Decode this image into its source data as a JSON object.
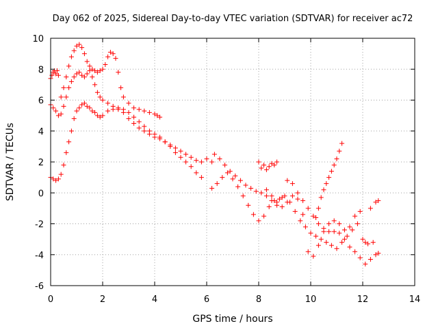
{
  "chart_data": {
    "type": "scatter",
    "title": "Day 062 of 2025, Sidereal Day-to-day VTEC variation (SDTVAR) for receiver ac72",
    "xlabel": "GPS time / hours",
    "ylabel": "SDTVAR / TECUs",
    "xlim": [
      0,
      14
    ],
    "ylim": [
      -6,
      10
    ],
    "xticks": [
      "0",
      "2",
      "4",
      "6",
      "8",
      "10",
      "12",
      "14"
    ],
    "yticks": [
      "-6",
      "-4",
      "-2",
      "0",
      "2",
      "4",
      "6",
      "8",
      "10"
    ],
    "grid": true,
    "marker": "+",
    "color": "#ff0000",
    "series": [
      {
        "name": "trace-1",
        "x": [
          0.0,
          0.05,
          0.1,
          0.15,
          0.2,
          0.25,
          0.3,
          0.4,
          0.5,
          0.6,
          0.7,
          0.8,
          0.9,
          1.0,
          1.1,
          1.2,
          1.3,
          1.4,
          1.5,
          1.6,
          1.7,
          1.8,
          1.9,
          2.0,
          2.1,
          2.2,
          2.3,
          2.4,
          2.5,
          2.6,
          2.7,
          2.8,
          3.0,
          3.2,
          3.4,
          3.6,
          3.8,
          4.0,
          4.1,
          4.2
        ],
        "y": [
          7.4,
          7.6,
          7.8,
          7.9,
          7.7,
          7.9,
          7.6,
          6.2,
          6.8,
          7.5,
          8.2,
          8.8,
          9.2,
          9.5,
          9.6,
          9.4,
          9.0,
          8.5,
          8.2,
          8.0,
          7.9,
          7.8,
          7.9,
          8.0,
          8.3,
          8.8,
          9.1,
          9.0,
          8.7,
          7.8,
          6.8,
          6.2,
          5.8,
          5.5,
          5.4,
          5.3,
          5.2,
          5.1,
          5.0,
          4.9
        ]
      },
      {
        "name": "trace-2",
        "x": [
          0.0,
          0.1,
          0.2,
          0.3,
          0.4,
          0.5,
          0.6,
          0.7,
          0.8,
          0.9,
          1.0,
          1.1,
          1.2,
          1.3,
          1.4,
          1.5,
          1.6,
          1.7,
          1.8,
          1.9,
          2.0,
          2.2,
          2.4,
          2.6,
          2.8,
          3.0,
          3.2,
          3.4,
          3.6,
          3.8,
          4.0,
          4.2,
          4.4,
          4.6,
          4.8,
          5.0,
          5.2,
          5.4,
          5.6,
          5.8,
          6.0,
          6.2
        ],
        "y": [
          5.7,
          5.5,
          5.3,
          5.0,
          5.1,
          5.6,
          6.2,
          6.8,
          7.2,
          7.5,
          7.7,
          7.8,
          7.6,
          7.5,
          7.7,
          7.9,
          7.5,
          7.0,
          6.5,
          6.2,
          6.0,
          5.8,
          5.6,
          5.4,
          5.2,
          4.8,
          4.5,
          4.2,
          4.0,
          3.8,
          3.6,
          3.5,
          3.3,
          3.1,
          2.9,
          2.7,
          2.5,
          2.3,
          2.1,
          2.0,
          2.2,
          2.0
        ]
      },
      {
        "name": "trace-3",
        "x": [
          0.0,
          0.1,
          0.2,
          0.3,
          0.4,
          0.5,
          0.6,
          0.7,
          0.8,
          0.9,
          1.0,
          1.1,
          1.2,
          1.3,
          1.4,
          1.5,
          1.6,
          1.7,
          1.8,
          1.9,
          2.0,
          2.2,
          2.4,
          2.6,
          2.8,
          3.0,
          3.2,
          3.4,
          3.6,
          3.8,
          4.0,
          4.2,
          4.4,
          4.6,
          4.8,
          5.0,
          5.2,
          5.4,
          5.6,
          5.8
        ],
        "y": [
          1.0,
          0.9,
          0.8,
          0.9,
          1.2,
          1.8,
          2.6,
          3.3,
          4.0,
          4.8,
          5.3,
          5.5,
          5.7,
          5.8,
          5.6,
          5.5,
          5.3,
          5.2,
          5.0,
          4.9,
          5.0,
          5.3,
          5.4,
          5.5,
          5.4,
          5.2,
          4.9,
          4.6,
          4.3,
          4.0,
          3.8,
          3.6,
          3.3,
          3.0,
          2.6,
          2.3,
          2.0,
          1.7,
          1.3,
          1.0
        ]
      },
      {
        "name": "trace-4",
        "x": [
          6.3,
          6.5,
          6.7,
          6.9,
          7.1,
          7.3,
          7.5,
          7.7,
          7.9,
          8.1,
          8.3,
          8.5,
          8.7,
          8.9,
          9.1,
          9.3,
          9.5,
          9.7,
          9.9,
          10.1,
          10.3,
          10.5,
          10.7,
          10.9,
          11.1,
          11.3,
          11.5,
          11.7,
          11.9,
          12.1,
          12.3,
          12.5,
          12.6
        ],
        "y": [
          2.5,
          2.2,
          1.8,
          1.4,
          1.1,
          0.8,
          0.5,
          0.3,
          0.1,
          0.0,
          -0.2,
          -0.5,
          -0.8,
          -0.3,
          0.8,
          0.6,
          0.0,
          -0.5,
          -1.0,
          -1.5,
          -2.0,
          -2.3,
          -2.5,
          -2.5,
          -2.6,
          -3.0,
          -3.5,
          -3.8,
          -4.2,
          -4.6,
          -4.3,
          -4.0,
          -3.9
        ]
      },
      {
        "name": "trace-5",
        "x": [
          6.2,
          6.4,
          6.6,
          6.8,
          7.0,
          7.2,
          7.4,
          7.6,
          7.8,
          8.0,
          8.2,
          8.4,
          8.6,
          8.8,
          9.0,
          9.2,
          9.4,
          9.6,
          9.8,
          10.0,
          10.2,
          10.4,
          10.6,
          10.8,
          11.0,
          11.2,
          11.4,
          11.6,
          11.8,
          12.0,
          12.2,
          12.4
        ],
        "y": [
          0.3,
          0.6,
          1.0,
          1.3,
          0.9,
          0.4,
          -0.2,
          -0.8,
          -1.4,
          -1.8,
          -1.5,
          -0.9,
          -0.5,
          -0.4,
          -0.2,
          -0.6,
          -1.2,
          -1.8,
          -2.2,
          -2.6,
          -2.8,
          -3.0,
          -3.2,
          -3.4,
          -3.6,
          -3.2,
          -2.8,
          -2.4,
          -2.0,
          -3.0,
          -3.3,
          -3.2
        ]
      },
      {
        "name": "trace-6",
        "x": [
          8.3,
          8.5,
          8.7,
          8.9,
          9.1,
          9.3,
          9.5,
          9.7,
          9.9,
          10.1,
          10.3,
          10.5,
          10.7,
          10.9,
          11.1,
          11.3,
          11.5,
          11.7,
          11.9,
          12.1,
          12.3,
          12.5,
          12.6
        ],
        "y": [
          0.2,
          -0.2,
          -0.6,
          -0.9,
          -0.6,
          -0.2,
          -0.4,
          -1.4,
          -3.8,
          -4.1,
          -3.4,
          -2.5,
          -2.0,
          -1.8,
          -2.0,
          -2.4,
          -2.2,
          -1.5,
          -1.2,
          -3.2,
          -1.0,
          -0.6,
          -0.5
        ]
      },
      {
        "name": "trace-7",
        "x": [
          10.2,
          10.3,
          10.4,
          10.5,
          10.6,
          10.7,
          10.8,
          10.9,
          11.0,
          11.1,
          11.2
        ],
        "y": [
          -1.6,
          -1.0,
          -0.3,
          0.2,
          0.6,
          1.0,
          1.4,
          1.8,
          2.2,
          2.7,
          3.2
        ]
      },
      {
        "name": "trace-8",
        "x": [
          8.0,
          8.1,
          8.2,
          8.3,
          8.4,
          8.5,
          8.6,
          8.7
        ],
        "y": [
          2.0,
          1.6,
          1.8,
          1.5,
          1.7,
          1.9,
          1.8,
          2.0
        ]
      }
    ]
  }
}
